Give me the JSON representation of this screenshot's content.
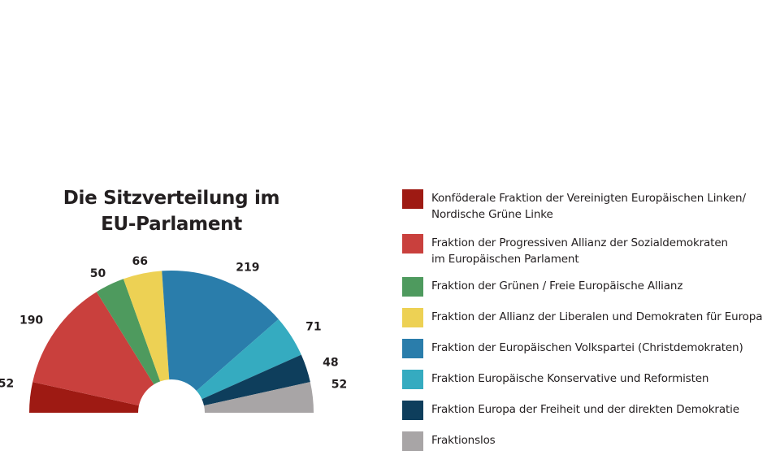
{
  "chart_data": {
    "type": "pie",
    "variant": "half-donut (parliament seat distribution)",
    "title": "Die Sitzverteilung im EU-Parlament",
    "title_lines": [
      "Die Sitzverteilung im",
      "EU-Parlament"
    ],
    "slices": [
      {
        "label": "Konföderale Fraktion der Vereinigten Europäischen Linken/\nNordische Grüne Linke",
        "value": 52,
        "color": "#9e1a13"
      },
      {
        "label": "Fraktion der Progressiven Allianz der Sozialdemokraten\nim Europäischen Parlament",
        "value": 190,
        "color": "#c9403d"
      },
      {
        "label": "Fraktion der Grünen / Freie Europäische Allianz",
        "value": 50,
        "color": "#4e9a5e"
      },
      {
        "label": "Fraktion der Allianz der Liberalen und Demokraten für Europa",
        "value": 66,
        "color": "#edd154"
      },
      {
        "label": "Fraktion der Europäischen Volkspartei (Christdemokraten)",
        "value": 219,
        "color": "#2a7dab"
      },
      {
        "label": "Fraktion Europäische Konservative und Reformisten",
        "value": 71,
        "color": "#35abc0"
      },
      {
        "label": "Fraktion Europa der Freiheit und der direkten Demokratie",
        "value": 48,
        "color": "#0e3e5c"
      },
      {
        "label": "Fraktionslos",
        "value": 52,
        "color": "#a8a5a6"
      }
    ],
    "legend_position": "right"
  }
}
